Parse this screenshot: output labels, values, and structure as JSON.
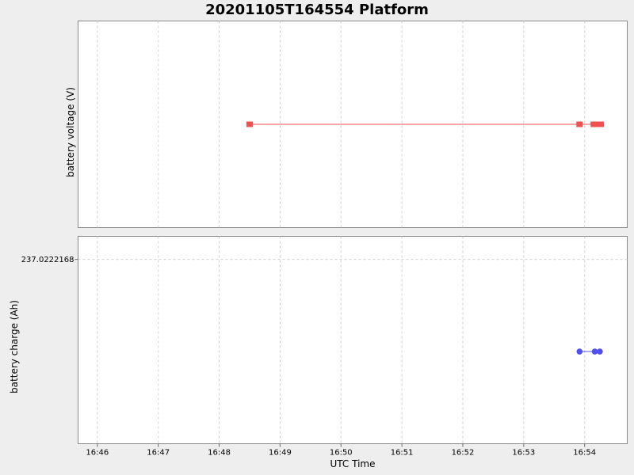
{
  "chart_data": {
    "type": "line",
    "title": "20201105T164554 Platform",
    "xlabel": "UTC Time",
    "x_ticks": [
      "16:46",
      "16:47",
      "16:48",
      "16:49",
      "16:50",
      "16:51",
      "16:52",
      "16:53",
      "16:54"
    ],
    "xlim": [
      "16:45:41",
      "16:54:42"
    ],
    "grid": true,
    "panels": [
      {
        "ylabel": "battery voltage (V)",
        "y_ticks": [],
        "series": [
          {
            "color": "#f05050",
            "marker": "square",
            "x": [
              "16:48:30",
              "16:53:55",
              "16:54:09",
              "16:54:12",
              "16:54:14",
              "16:54:16"
            ],
            "y": [
              0,
              0,
              0,
              0,
              0,
              0
            ]
          }
        ],
        "ylim": [
          -1,
          1
        ]
      },
      {
        "ylabel": "battery charge (Ah)",
        "y_ticks": [
          "237.0222168"
        ],
        "series": [
          {
            "color": "#5050f0",
            "marker": "circle",
            "x": [
              "16:53:55",
              "16:54:10",
              "16:54:15"
            ],
            "y": [
              237.0222166,
              237.0222166,
              237.0222166
            ]
          }
        ],
        "ylim": [
          237.0222164,
          237.02221685
        ]
      }
    ]
  }
}
